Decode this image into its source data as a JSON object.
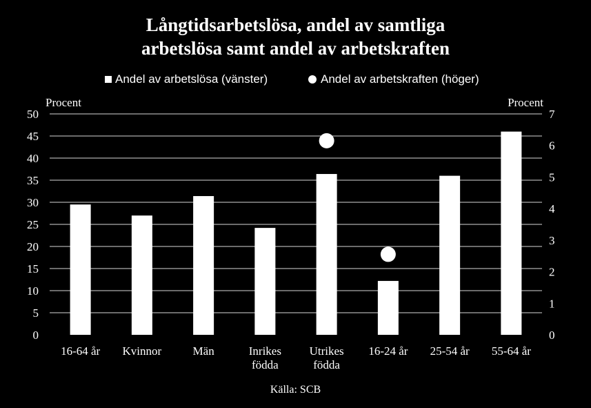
{
  "title_line1": "Långtidsarbetslösa, andel av samtliga",
  "title_line2": "arbetslösa samt andel av arbetskraften",
  "legend": {
    "bars": "Andel av arbetslösa (vänster)",
    "dots": "Andel av arbetskraften (höger)"
  },
  "left_unit": "Procent",
  "right_unit": "Procent",
  "source": "Källa: SCB",
  "colors": {
    "background": "#000000",
    "marks": "#ffffff"
  },
  "chart_data": {
    "type": "bar",
    "categories": [
      [
        "16-64 år"
      ],
      [
        "Kvinnor"
      ],
      [
        "Män"
      ],
      [
        "Inrikes",
        "födda"
      ],
      [
        "Utrikes",
        "födda"
      ],
      [
        "16-24 år"
      ],
      [
        "25-54 år"
      ],
      [
        "55-64 år"
      ]
    ],
    "series": [
      {
        "name": "Andel av arbetslösa (vänster)",
        "axis": "left",
        "kind": "bar",
        "values": [
          29.5,
          27,
          31.4,
          24.2,
          36.4,
          12.2,
          36,
          46
        ]
      },
      {
        "name": "Andel av arbetskraften (höger)",
        "axis": "right",
        "kind": "marker",
        "values": [
          null,
          null,
          null,
          null,
          6.15,
          2.55,
          null,
          null
        ]
      }
    ],
    "y_left": {
      "min": 0,
      "max": 50,
      "ticks": [
        0,
        5,
        10,
        15,
        20,
        25,
        30,
        35,
        40,
        45,
        50
      ]
    },
    "y_right": {
      "min": 0,
      "max": 7,
      "ticks": [
        0,
        1,
        2,
        3,
        4,
        5,
        6,
        7
      ]
    },
    "grid": true,
    "legend_position": "top"
  }
}
